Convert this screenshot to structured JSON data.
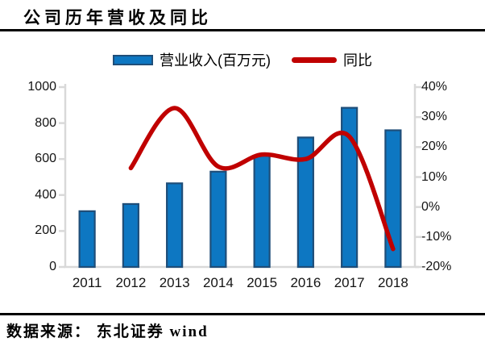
{
  "title": "公司历年营收及同比",
  "legend": {
    "items": [
      {
        "label": "营业收入(百万元)",
        "swatch": "bar",
        "color": "#0d77c2",
        "border": "#1f4e79"
      },
      {
        "label": "同比",
        "swatch": "line",
        "color": "#c00000"
      }
    ]
  },
  "source_note": "数据来源： 东北证券  wind",
  "colors": {
    "bar_fill": "#0d77c2",
    "bar_border": "#1f4e79",
    "line": "#c00000",
    "axis": "#d9d9d9",
    "text": "#141414",
    "rule": "#000000"
  },
  "chart_data": {
    "type": "combo-bar-line",
    "title": "公司历年营收及同比",
    "categories": [
      "2011",
      "2012",
      "2013",
      "2014",
      "2015",
      "2016",
      "2017",
      "2018"
    ],
    "series": [
      {
        "name": "营业收入(百万元)",
        "type": "bar",
        "axis": "left",
        "values": [
          310,
          350,
          465,
          530,
          620,
          720,
          885,
          760
        ],
        "fill": "#0d77c2",
        "border": "#1f4e79"
      },
      {
        "name": "同比",
        "type": "line",
        "axis": "right",
        "unit": "%",
        "smooth": true,
        "values": [
          null,
          13,
          33,
          13.5,
          17.5,
          16,
          23.5,
          -14
        ],
        "color": "#c00000"
      }
    ],
    "left_axis": {
      "min": 0,
      "max": 1000,
      "tick_labels": [
        "1000",
        "800",
        "600",
        "400",
        "200",
        "0"
      ]
    },
    "right_axis": {
      "min": -20,
      "max": 40,
      "tick_labels": [
        "40%",
        "30%",
        "20%",
        "10%",
        "0%",
        "-10%",
        "-20%"
      ]
    },
    "grid": false,
    "legend_position": "top-center"
  }
}
